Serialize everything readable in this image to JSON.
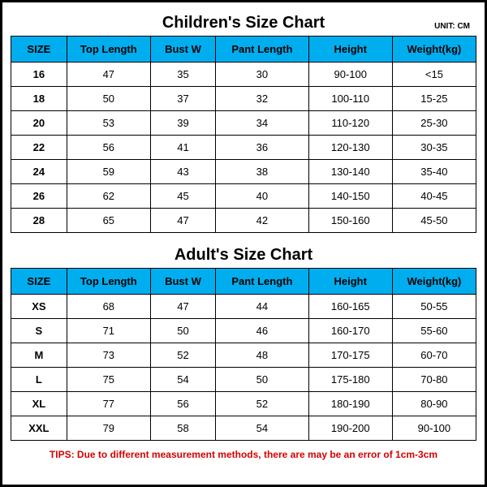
{
  "unit_label": "UNIT: CM",
  "colors": {
    "header_bg": "#00aeef",
    "border": "#000000",
    "text": "#000000",
    "tips": "#d40000"
  },
  "column_widths": [
    "12%",
    "18%",
    "14%",
    "20%",
    "18%",
    "18%"
  ],
  "children": {
    "title": "Children's Size Chart",
    "columns": [
      "SIZE",
      "Top Length",
      "Bust W",
      "Pant Length",
      "Height",
      "Weight(kg)"
    ],
    "rows": [
      [
        "16",
        "47",
        "35",
        "30",
        "90-100",
        "<15"
      ],
      [
        "18",
        "50",
        "37",
        "32",
        "100-110",
        "15-25"
      ],
      [
        "20",
        "53",
        "39",
        "34",
        "110-120",
        "25-30"
      ],
      [
        "22",
        "56",
        "41",
        "36",
        "120-130",
        "30-35"
      ],
      [
        "24",
        "59",
        "43",
        "38",
        "130-140",
        "35-40"
      ],
      [
        "26",
        "62",
        "45",
        "40",
        "140-150",
        "40-45"
      ],
      [
        "28",
        "65",
        "47",
        "42",
        "150-160",
        "45-50"
      ]
    ]
  },
  "adult": {
    "title": "Adult's Size Chart",
    "columns": [
      "SIZE",
      "Top Length",
      "Bust W",
      "Pant Length",
      "Height",
      "Weight(kg)"
    ],
    "rows": [
      [
        "XS",
        "68",
        "47",
        "44",
        "160-165",
        "50-55"
      ],
      [
        "S",
        "71",
        "50",
        "46",
        "160-170",
        "55-60"
      ],
      [
        "M",
        "73",
        "52",
        "48",
        "170-175",
        "60-70"
      ],
      [
        "L",
        "75",
        "54",
        "50",
        "175-180",
        "70-80"
      ],
      [
        "XL",
        "77",
        "56",
        "52",
        "180-190",
        "80-90"
      ],
      [
        "XXL",
        "79",
        "58",
        "54",
        "190-200",
        "90-100"
      ]
    ]
  },
  "tips": "TIPS: Due to different measurement methods, there are may be an error of 1cm-3cm"
}
